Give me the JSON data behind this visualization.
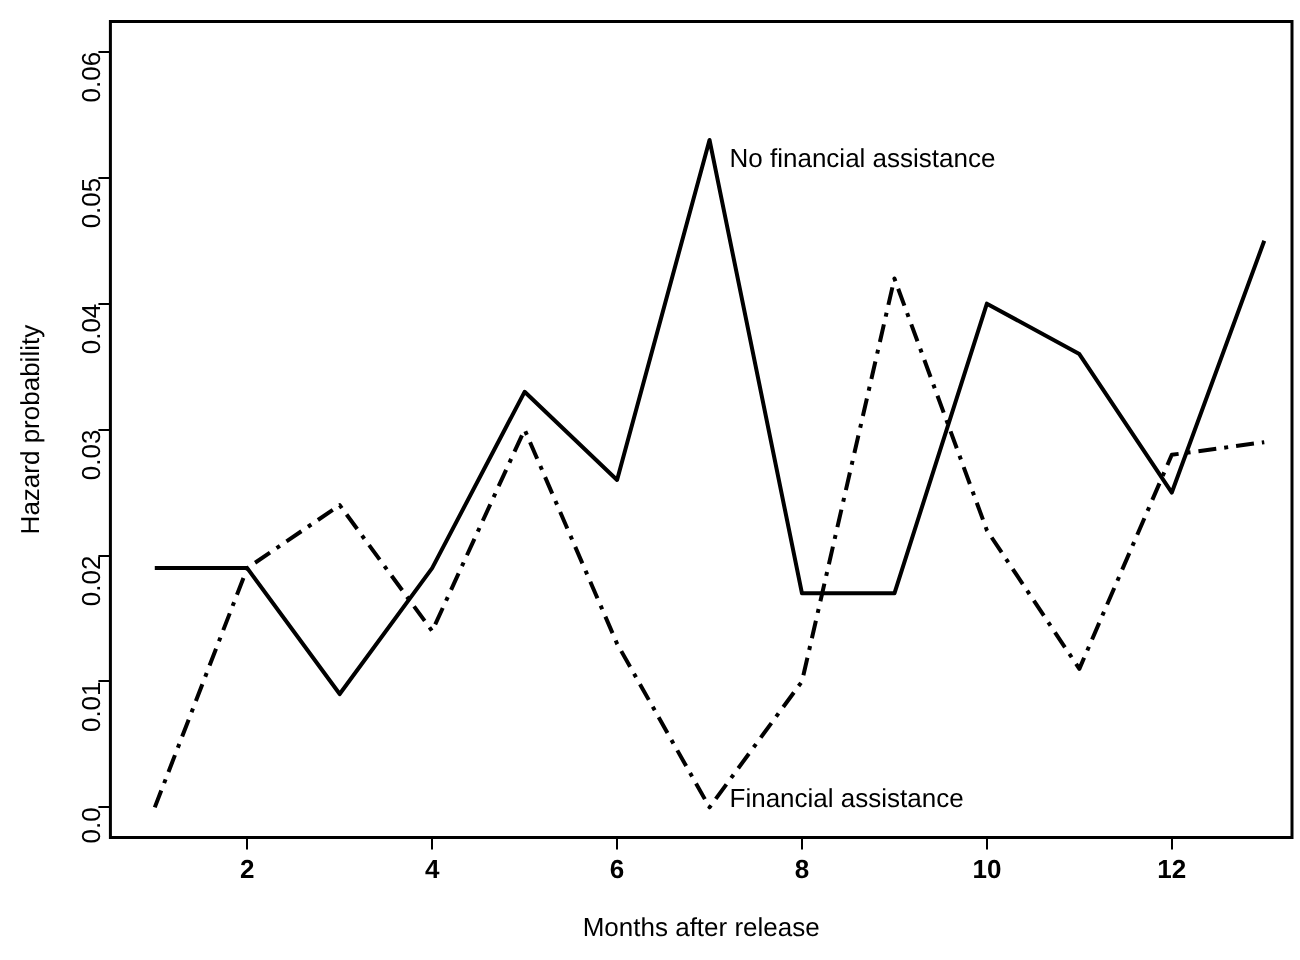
{
  "chart_data": {
    "type": "line",
    "xlabel": "Months after release",
    "ylabel": "Hazard probability",
    "x": [
      1,
      2,
      3,
      4,
      5,
      6,
      7,
      8,
      9,
      10,
      11,
      12,
      13
    ],
    "series": [
      {
        "name": "No financial assistance",
        "color": "#000000",
        "line_style": "solid",
        "values": [
          0.019,
          0.019,
          0.009,
          0.019,
          0.033,
          0.026,
          0.053,
          0.017,
          0.017,
          0.04,
          0.036,
          0.025,
          0.045
        ]
      },
      {
        "name": "Financial assistance",
        "color": "#000000",
        "line_style": "dashed",
        "values": [
          0,
          0.019,
          0.024,
          0.014,
          0.03,
          0.013,
          0,
          0.01,
          0.042,
          0.022,
          0.011,
          0.028,
          0.029
        ]
      }
    ],
    "xlim": [
      0.52,
      13.3
    ],
    "xticks": [
      2,
      4,
      6,
      8,
      10,
      12
    ],
    "ylim": [
      -0.0024,
      0.0624
    ],
    "yticks": [
      {
        "value": 0,
        "label": "0.0"
      },
      0.01,
      0.02,
      0.03,
      0.04,
      0.05,
      0.06
    ],
    "grid": false,
    "legend": false,
    "marker": "none"
  }
}
